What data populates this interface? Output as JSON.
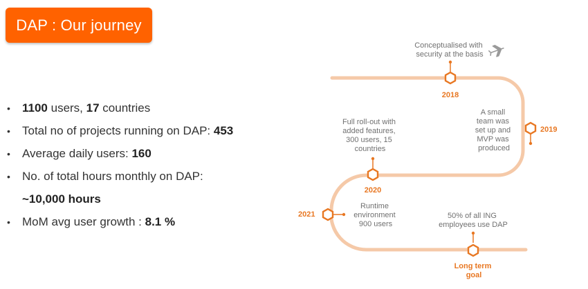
{
  "title": "DAP : Our journey",
  "bullets": [
    {
      "bold1": "1100",
      "text1": " users, ",
      "bold2": "17",
      "text2": " countries"
    },
    {
      "text": "Total no of projects running on DAP: ",
      "bold": "453"
    },
    {
      "text": "Average daily users: ",
      "bold": "160"
    },
    {
      "text": "No. of total hours monthly on DAP:"
    },
    {
      "bold": "~10,000 hours"
    },
    {
      "text": "MoM avg user growth : ",
      "bold": "8.1 %"
    }
  ],
  "milestones": {
    "m2018": {
      "year": "2018",
      "lines": [
        "Conceptualised with",
        "security at the basis"
      ]
    },
    "m2019": {
      "year": "2019",
      "lines": [
        "A small",
        "team was",
        "set up and",
        "MVP was",
        "produced"
      ]
    },
    "m2020": {
      "year": "2020",
      "lines": [
        "Full roll-out with",
        "added features,",
        "300 users, 15",
        "countries"
      ]
    },
    "m2021": {
      "year": "2021",
      "lines": [
        "Runtime",
        "environment",
        "900 users"
      ]
    },
    "goal": {
      "year_lines": [
        "Long term",
        "goal"
      ],
      "lines": [
        "50% of all ING",
        "employees use DAP"
      ]
    }
  },
  "colors": {
    "accent": "#ff6200",
    "path": "#f5c9a8",
    "milestone": "#e87722"
  },
  "icons": {
    "plane": "plane-icon"
  }
}
